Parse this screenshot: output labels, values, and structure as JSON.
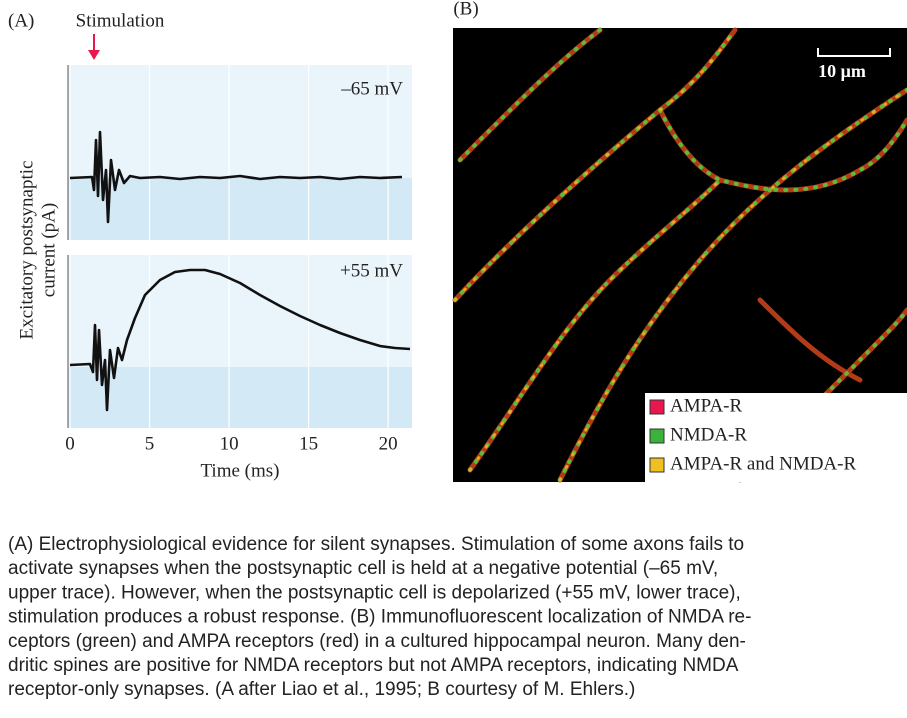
{
  "panel_a": {
    "label": "(A)",
    "stimulation": "Stimulation",
    "y_label_lines": [
      "Excitatory postsynaptic",
      "current (pA)"
    ],
    "traces": [
      "–65 mV",
      "+55 mV"
    ],
    "x_label": "Time (ms)",
    "xlim": [
      0,
      21.5
    ],
    "xticks": [
      0,
      5,
      10,
      15,
      20
    ]
  },
  "panel_b": {
    "label": "(B)",
    "scale_bar": "10 μm",
    "legend": [
      {
        "name": "AMPA-R",
        "color": "#e8174d"
      },
      {
        "name": "NMDA-R",
        "color": "#3bb33b"
      },
      {
        "name": "AMPA-R and NMDA-R",
        "color": "#f0c020"
      }
    ]
  },
  "caption": [
    "(A) Electrophysiological evidence for silent synapses. Stimulation of some axons fails to",
    "activate synapses when the postsynaptic cell is held at a negative potential (–65 mV,",
    "upper trace). However, when the postsynaptic cell is depolarized (+55 mV, lower trace),",
    "stimulation produces a robust response. (B) Immunofluorescent localization of NMDA re-",
    "ceptors (green) and AMPA receptors (red) in a cultured hippocampal neuron. Many den-",
    "dritic spines are positive for NMDA receptors but not AMPA receptors, indicating NMDA",
    "receptor-only synapses. (A after Liao et al., 1995; B courtesy of M. Ehlers.)"
  ]
}
